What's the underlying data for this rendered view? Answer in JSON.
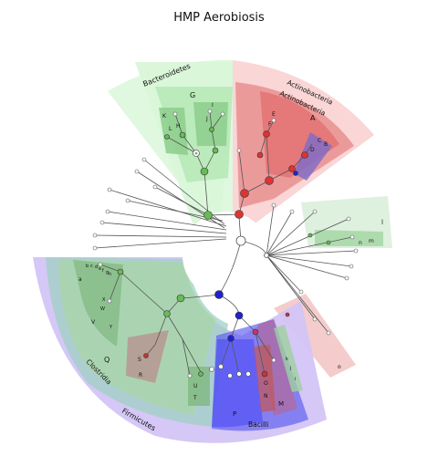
{
  "title": "HMP Aerobiosis",
  "labels": {
    "bacteroidetes": "Bacteroidetes",
    "actinobacteria_phylum": "Actinobacteria",
    "actinobacteria_class": "Actinobacteria",
    "firmicutes": "Firmicutes",
    "clostridia": "Clostridia",
    "bacilli": "Bacilli",
    "A": "A",
    "B": "B",
    "C": "C",
    "D": "D",
    "E": "E",
    "F": "F",
    "G": "G",
    "H": "H",
    "I": "I",
    "J": "J",
    "K": "K",
    "L": "L",
    "M": "M",
    "N": "N",
    "O": "O",
    "P": "P",
    "Q": "Q",
    "R": "R",
    "S": "S",
    "T": "T",
    "U": "U",
    "V": "V",
    "W": "W",
    "X": "X",
    "Y": "Y",
    "a": "a",
    "b": "b",
    "c": "c",
    "d": "d",
    "e": "e",
    "f": "f",
    "g": "g",
    "h": "h",
    "i": "i",
    "j": "j",
    "k": "k",
    "l": "l",
    "m": "m",
    "n": "n",
    "o": "o"
  },
  "colors": {
    "green": "#2ca02c",
    "red": "#d62728",
    "blue": "#1f1fd6",
    "purple": "#9467bd"
  }
}
